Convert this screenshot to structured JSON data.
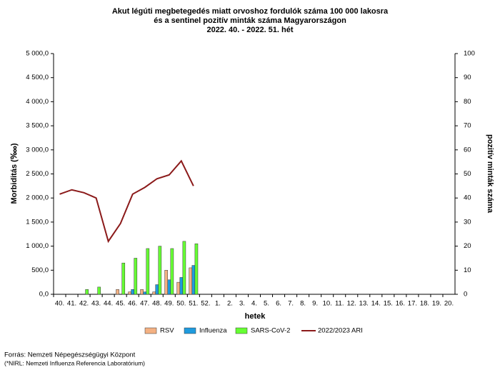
{
  "chart_data": {
    "type": "bar",
    "title": [
      "Akut légúti megbetegedés miatt orvoshoz fordulók száma 100 000 lakosra",
      "és a sentinel pozitív minták száma Magyarországon",
      "2022. 40. - 2022. 51. hét"
    ],
    "x_label": "hetek",
    "y_label": "Morbiditás (‱)",
    "y2_label": "pozitív minták száma",
    "source": "Forrás: Nemzeti Népegészségügyi Központ",
    "note": "(*NIRL: Nemzeti Influenza Referencia Laboratórium)",
    "categories": [
      "40.",
      "41.",
      "42.",
      "43.",
      "44.",
      "45.",
      "46.",
      "47.",
      "48.",
      "49.",
      "50.",
      "51.",
      "52.",
      "1.",
      "2.",
      "3.",
      "4.",
      "5.",
      "6.",
      "7.",
      "8.",
      "9.",
      "10.",
      "11.",
      "12.",
      "13.",
      "14.",
      "15.",
      "16.",
      "17.",
      "18.",
      "19.",
      "20."
    ],
    "ylim": [
      0,
      5000
    ],
    "yticks": [
      {
        "value": 0,
        "label": "0,0"
      },
      {
        "value": 500,
        "label": "500,0"
      },
      {
        "value": 1000,
        "label": "1 000,0"
      },
      {
        "value": 1500,
        "label": "1 500,0"
      },
      {
        "value": 2000,
        "label": "2 000,0"
      },
      {
        "value": 2500,
        "label": "2 500,0"
      },
      {
        "value": 3000,
        "label": "3 000,0"
      },
      {
        "value": 3500,
        "label": "3 500,0"
      },
      {
        "value": 4000,
        "label": "4 000,0"
      },
      {
        "value": 4500,
        "label": "4 500,0"
      },
      {
        "value": 5000,
        "label": "5 000,0"
      }
    ],
    "y2lim": [
      0,
      100
    ],
    "y2ticks": [
      0,
      10,
      20,
      30,
      40,
      50,
      60,
      70,
      80,
      90,
      100
    ],
    "legend": "bottom",
    "series": [
      {
        "name": "RSV",
        "color": "#f4b183",
        "axis": "y2",
        "values": [
          0,
          0,
          0,
          0,
          0,
          2,
          1,
          2,
          1,
          10,
          5,
          11,
          null,
          null,
          null,
          null,
          null,
          null,
          null,
          null,
          null,
          null,
          null,
          null,
          null,
          null,
          null,
          null,
          null,
          null,
          null,
          null,
          null
        ]
      },
      {
        "name": "Influenza",
        "color": "#1f9bde",
        "axis": "y2",
        "values": [
          0,
          0,
          0,
          0,
          0,
          0,
          2,
          1,
          4,
          6,
          7,
          12,
          null,
          null,
          null,
          null,
          null,
          null,
          null,
          null,
          null,
          null,
          null,
          null,
          null,
          null,
          null,
          null,
          null,
          null,
          null,
          null,
          null
        ]
      },
      {
        "name": "SARS-CoV-2",
        "color": "#66ff33",
        "axis": "y2",
        "values": [
          0,
          0,
          2,
          3,
          0,
          13,
          15,
          19,
          20,
          19,
          22,
          21,
          null,
          null,
          null,
          null,
          null,
          null,
          null,
          null,
          null,
          null,
          null,
          null,
          null,
          null,
          null,
          null,
          null,
          null,
          null,
          null,
          null
        ]
      },
      {
        "name": "2022/2023 ARI",
        "color": "#8b1a1a",
        "type": "line",
        "values": [
          2080,
          2170,
          2110,
          2000,
          1100,
          1470,
          2080,
          2220,
          2400,
          2480,
          2770,
          2250,
          null,
          null,
          null,
          null,
          null,
          null,
          null,
          null,
          null,
          null,
          null,
          null,
          null,
          null,
          null,
          null,
          null,
          null,
          null,
          null,
          null
        ]
      }
    ]
  }
}
